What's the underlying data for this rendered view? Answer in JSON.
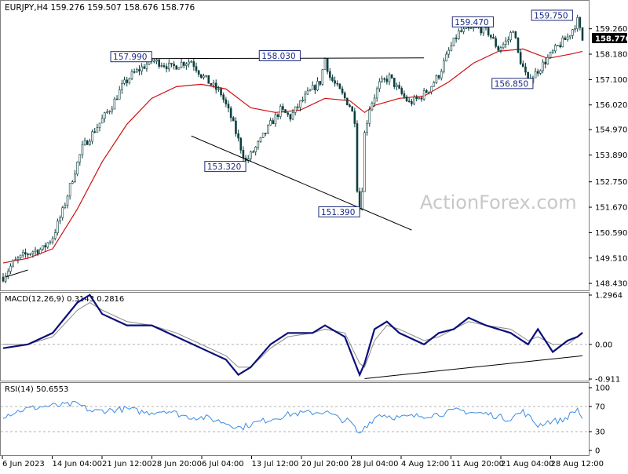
{
  "chart_data": {
    "type": "candlestick",
    "symbol_header": "EURJPY,H4  159.276 159.507 158.676 158.776",
    "watermark": "ActionForex.com",
    "colors": {
      "candle": "#0f3f3f",
      "ma": "#d01010",
      "trendline": "#000000",
      "price_tag_bg": "#000000",
      "price_tag_text": "#ffffff",
      "label_border": "#1f2b7a",
      "macd_line": "#0a0f7a",
      "signal_line": "#8a8a8a",
      "rsi_line": "#3c8ce6",
      "grid_border": "#808080"
    },
    "price_axis": {
      "ylim": [
        148.2,
        160.35
      ],
      "ticks": [
        "159.260",
        "158.180",
        "157.100",
        "156.020",
        "154.970",
        "153.890",
        "152.750",
        "151.670",
        "150.590",
        "149.510",
        "148.430"
      ],
      "current_price": "158.776"
    },
    "x_axis": {
      "ticks": [
        "6 Jun 2023",
        "14 Jun 04:00",
        "21 Jun 12:00",
        "28 Jun 20:00",
        "6 Jul 04:00",
        "13 Jul 12:00",
        "20 Jul 20:00",
        "28 Jul 04:00",
        "4 Aug 12:00",
        "11 Aug 20:00",
        "21 Aug 04:00",
        "28 Aug 12:00"
      ]
    },
    "price_path": [
      [
        0,
        148.7
      ],
      [
        4,
        149.3
      ],
      [
        8,
        149.6
      ],
      [
        12,
        149.8
      ],
      [
        16,
        149.9
      ],
      [
        20,
        150.4
      ],
      [
        24,
        151.5
      ],
      [
        28,
        152.9
      ],
      [
        32,
        154.2
      ],
      [
        36,
        154.8
      ],
      [
        40,
        155.4
      ],
      [
        44,
        156.0
      ],
      [
        48,
        156.8
      ],
      [
        52,
        157.3
      ],
      [
        56,
        157.6
      ],
      [
        60,
        157.9
      ],
      [
        64,
        157.8
      ],
      [
        68,
        157.6
      ],
      [
        72,
        157.8
      ],
      [
        76,
        157.9
      ],
      [
        80,
        157.3
      ],
      [
        84,
        156.9
      ],
      [
        88,
        156.5
      ],
      [
        92,
        155.5
      ],
      [
        96,
        154.2
      ],
      [
        98,
        153.6
      ],
      [
        100,
        153.9
      ],
      [
        104,
        154.5
      ],
      [
        108,
        155.2
      ],
      [
        112,
        155.8
      ],
      [
        116,
        155.5
      ],
      [
        120,
        156.1
      ],
      [
        124,
        156.6
      ],
      [
        128,
        157.0
      ],
      [
        130,
        158.0
      ],
      [
        132,
        157.2
      ],
      [
        136,
        156.6
      ],
      [
        140,
        156.0
      ],
      [
        142,
        155.4
      ],
      [
        143,
        152.5
      ],
      [
        144,
        151.6
      ],
      [
        145,
        152.5
      ],
      [
        146,
        154.8
      ],
      [
        148,
        155.9
      ],
      [
        152,
        156.9
      ],
      [
        156,
        157.2
      ],
      [
        160,
        156.6
      ],
      [
        164,
        156.1
      ],
      [
        168,
        156.3
      ],
      [
        172,
        156.7
      ],
      [
        176,
        157.3
      ],
      [
        180,
        158.3
      ],
      [
        184,
        159.1
      ],
      [
        188,
        159.2
      ],
      [
        192,
        159.3
      ],
      [
        196,
        159.1
      ],
      [
        200,
        158.4
      ],
      [
        204,
        158.8
      ],
      [
        206,
        159.3
      ],
      [
        208,
        158.2
      ],
      [
        212,
        157.0
      ],
      [
        216,
        157.5
      ],
      [
        220,
        158.0
      ],
      [
        224,
        158.5
      ],
      [
        228,
        158.9
      ],
      [
        232,
        159.6
      ],
      [
        234,
        158.78
      ]
    ],
    "moving_average": [
      [
        0,
        149.3
      ],
      [
        10,
        149.5
      ],
      [
        20,
        149.9
      ],
      [
        30,
        151.6
      ],
      [
        40,
        153.6
      ],
      [
        50,
        155.2
      ],
      [
        60,
        156.3
      ],
      [
        70,
        156.8
      ],
      [
        80,
        156.9
      ],
      [
        90,
        156.7
      ],
      [
        100,
        155.9
      ],
      [
        110,
        155.7
      ],
      [
        120,
        155.8
      ],
      [
        130,
        156.3
      ],
      [
        140,
        156.2
      ],
      [
        146,
        155.7
      ],
      [
        150,
        156.0
      ],
      [
        160,
        156.3
      ],
      [
        170,
        156.4
      ],
      [
        180,
        157.0
      ],
      [
        190,
        157.8
      ],
      [
        200,
        158.3
      ],
      [
        210,
        158.4
      ],
      [
        220,
        158.0
      ],
      [
        230,
        158.2
      ],
      [
        234,
        158.3
      ]
    ],
    "annotations": [
      {
        "label": "157.990",
        "idx": 60,
        "price": 157.99,
        "side": "left"
      },
      {
        "label": "158.030",
        "idx": 120,
        "price": 158.03,
        "side": "left"
      },
      {
        "label": "153.320",
        "idx": 98,
        "price": 153.32,
        "side": "left"
      },
      {
        "label": "151.390",
        "idx": 144,
        "price": 151.39,
        "side": "left"
      },
      {
        "label": "159.470",
        "idx": 198,
        "price": 159.47,
        "side": "left"
      },
      {
        "label": "156.850",
        "idx": 214,
        "price": 156.85,
        "side": "left"
      },
      {
        "label": "159.750",
        "idx": 230,
        "price": 159.75,
        "side": "left"
      }
    ],
    "trendlines": [
      {
        "from": [
          56,
          157.99
        ],
        "to": [
          170,
          158.02
        ]
      },
      {
        "from": [
          76,
          154.7
        ],
        "to": [
          165,
          150.7
        ]
      },
      {
        "from": [
          1,
          148.7
        ],
        "to": [
          10,
          149.0
        ]
      }
    ],
    "macd": {
      "label": "MACD(12,26,9) 0.3143 0.2816",
      "ylim": [
        -0.911,
        1.2964
      ],
      "ticks": [
        "1.2964",
        "0.00",
        "-0.911"
      ],
      "macd_path": [
        [
          0,
          -0.1
        ],
        [
          10,
          0.0
        ],
        [
          20,
          0.3
        ],
        [
          30,
          1.1
        ],
        [
          35,
          1.3
        ],
        [
          40,
          0.8
        ],
        [
          50,
          0.5
        ],
        [
          60,
          0.5
        ],
        [
          70,
          0.2
        ],
        [
          80,
          -0.1
        ],
        [
          90,
          -0.4
        ],
        [
          95,
          -0.8
        ],
        [
          100,
          -0.6
        ],
        [
          108,
          0.0
        ],
        [
          115,
          0.3
        ],
        [
          125,
          0.3
        ],
        [
          130,
          0.5
        ],
        [
          138,
          0.2
        ],
        [
          144,
          -0.8
        ],
        [
          146,
          -0.5
        ],
        [
          150,
          0.4
        ],
        [
          155,
          0.6
        ],
        [
          160,
          0.3
        ],
        [
          170,
          0.0
        ],
        [
          176,
          0.3
        ],
        [
          182,
          0.4
        ],
        [
          188,
          0.7
        ],
        [
          195,
          0.5
        ],
        [
          205,
          0.3
        ],
        [
          212,
          0.0
        ],
        [
          216,
          0.4
        ],
        [
          222,
          -0.2
        ],
        [
          228,
          0.1
        ],
        [
          232,
          0.2
        ],
        [
          234,
          0.31
        ]
      ],
      "signal_path": [
        [
          0,
          0.0
        ],
        [
          10,
          0.0
        ],
        [
          20,
          0.2
        ],
        [
          30,
          0.9
        ],
        [
          35,
          1.1
        ],
        [
          40,
          0.9
        ],
        [
          50,
          0.6
        ],
        [
          60,
          0.5
        ],
        [
          70,
          0.3
        ],
        [
          80,
          0.0
        ],
        [
          90,
          -0.3
        ],
        [
          95,
          -0.6
        ],
        [
          100,
          -0.6
        ],
        [
          108,
          -0.1
        ],
        [
          115,
          0.2
        ],
        [
          125,
          0.3
        ],
        [
          130,
          0.4
        ],
        [
          138,
          0.3
        ],
        [
          144,
          -0.5
        ],
        [
          146,
          -0.6
        ],
        [
          150,
          0.1
        ],
        [
          155,
          0.5
        ],
        [
          160,
          0.4
        ],
        [
          170,
          0.1
        ],
        [
          176,
          0.2
        ],
        [
          182,
          0.4
        ],
        [
          188,
          0.6
        ],
        [
          195,
          0.5
        ],
        [
          205,
          0.4
        ],
        [
          212,
          0.1
        ],
        [
          216,
          0.2
        ],
        [
          222,
          0.0
        ],
        [
          228,
          0.0
        ],
        [
          232,
          0.2
        ],
        [
          234,
          0.28
        ]
      ],
      "trendline": {
        "from": [
          146,
          -0.9
        ],
        "to": [
          234,
          -0.3
        ]
      }
    },
    "rsi": {
      "label": "RSI(14) 50.6553",
      "ylim": [
        0,
        100
      ],
      "ticks": [
        "100",
        "70",
        "30",
        "0"
      ],
      "path": [
        [
          0,
          55
        ],
        [
          8,
          65
        ],
        [
          16,
          70
        ],
        [
          24,
          72
        ],
        [
          30,
          74
        ],
        [
          36,
          62
        ],
        [
          42,
          64
        ],
        [
          50,
          66
        ],
        [
          58,
          60
        ],
        [
          66,
          64
        ],
        [
          74,
          54
        ],
        [
          82,
          52
        ],
        [
          90,
          44
        ],
        [
          96,
          36
        ],
        [
          100,
          42
        ],
        [
          108,
          50
        ],
        [
          116,
          58
        ],
        [
          124,
          60
        ],
        [
          130,
          62
        ],
        [
          136,
          50
        ],
        [
          140,
          46
        ],
        [
          144,
          25
        ],
        [
          146,
          38
        ],
        [
          152,
          58
        ],
        [
          160,
          52
        ],
        [
          168,
          55
        ],
        [
          176,
          58
        ],
        [
          184,
          64
        ],
        [
          190,
          60
        ],
        [
          196,
          58
        ],
        [
          204,
          50
        ],
        [
          210,
          62
        ],
        [
          216,
          40
        ],
        [
          220,
          46
        ],
        [
          226,
          48
        ],
        [
          230,
          60
        ],
        [
          232,
          66
        ],
        [
          234,
          50.66
        ]
      ]
    }
  }
}
